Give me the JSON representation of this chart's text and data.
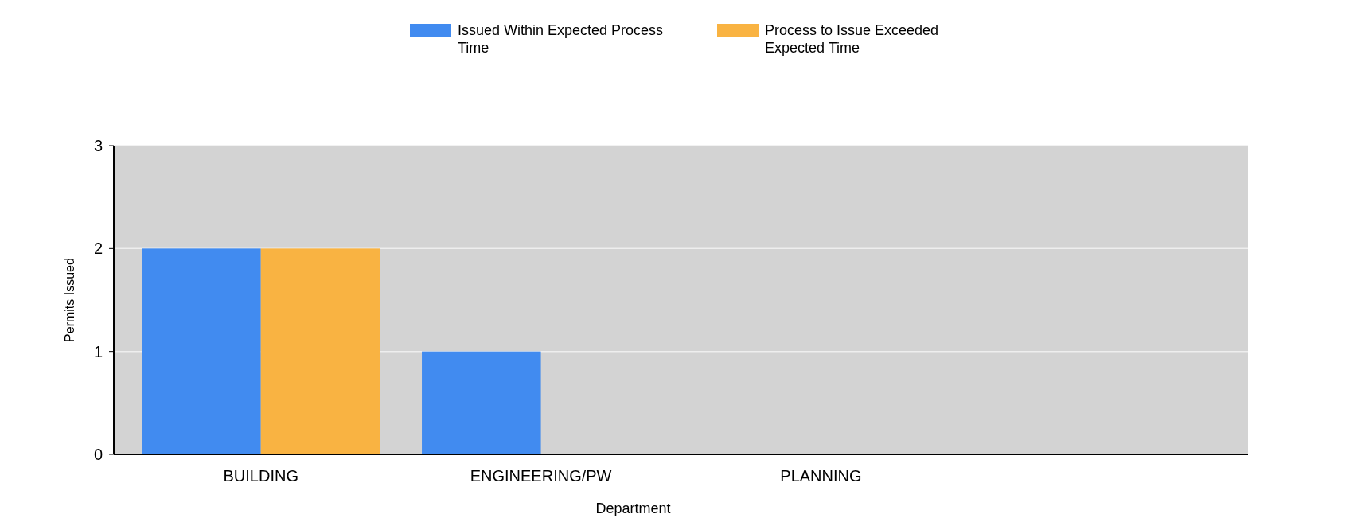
{
  "chart_data": {
    "type": "bar",
    "xlabel": "Department",
    "ylabel": "Permits Issued",
    "categories": [
      "BUILDING",
      "ENGINEERING/PW",
      "PLANNING"
    ],
    "series": [
      {
        "name": "Issued Within Expected Process Time",
        "color": "#418bf0",
        "values": [
          2,
          1,
          0
        ]
      },
      {
        "name": "Process to Issue Exceeded Expected Time",
        "color": "#f9b342",
        "values": [
          2,
          0,
          0
        ]
      }
    ],
    "ylim": [
      0,
      3
    ],
    "yticks": [
      0,
      1,
      2,
      3
    ],
    "grid": "y",
    "legend": "top"
  }
}
